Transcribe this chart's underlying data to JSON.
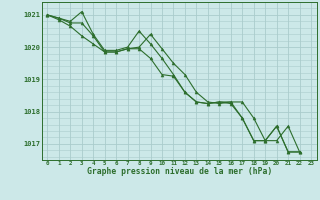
{
  "title": "Graphe pression niveau de la mer (hPa)",
  "background_color": "#cce8e8",
  "grid_color": "#aacccc",
  "line_color": "#2d6e2d",
  "marker_color": "#2d6e2d",
  "ylim": [
    1016.5,
    1021.4
  ],
  "xlim": [
    -0.5,
    23.5
  ],
  "yticks": [
    1017,
    1018,
    1019,
    1020,
    1021
  ],
  "xticks": [
    0,
    1,
    2,
    3,
    4,
    5,
    6,
    7,
    8,
    9,
    10,
    11,
    12,
    13,
    14,
    15,
    16,
    17,
    18,
    19,
    20,
    21,
    22,
    23
  ],
  "series": [
    {
      "x": [
        0,
        1,
        2,
        3,
        4,
        5,
        6,
        7,
        8,
        9,
        10,
        11,
        12,
        13,
        14,
        15,
        16,
        17,
        18,
        19,
        20,
        21,
        22
      ],
      "y": [
        1021.0,
        1020.9,
        1020.8,
        1021.1,
        1020.4,
        1019.9,
        1019.9,
        1020.0,
        1020.5,
        1020.1,
        1019.65,
        1019.15,
        1018.6,
        1018.3,
        1018.25,
        1018.3,
        1018.25,
        1017.8,
        1017.1,
        1017.1,
        1017.55,
        1016.75,
        1016.75
      ]
    },
    {
      "x": [
        0,
        1,
        2,
        3,
        4,
        5,
        6,
        7,
        8,
        9,
        10,
        11,
        12,
        13,
        14,
        15,
        16,
        17,
        18,
        19,
        20,
        21,
        22
      ],
      "y": [
        1021.0,
        1020.9,
        1020.75,
        1020.75,
        1020.35,
        1019.85,
        1019.85,
        1019.95,
        1020.0,
        1020.4,
        1019.95,
        1019.5,
        1019.15,
        1018.6,
        1018.3,
        1018.25,
        1018.3,
        1018.3,
        1017.8,
        1017.1,
        1017.1,
        1017.55,
        1016.75
      ]
    },
    {
      "x": [
        0,
        1,
        2,
        3,
        4,
        5,
        6,
        7,
        8,
        9,
        10,
        11,
        12,
        13,
        14,
        15,
        16,
        17,
        18,
        19,
        20,
        21,
        22
      ],
      "y": [
        1021.0,
        1020.85,
        1020.65,
        1020.35,
        1020.1,
        1019.85,
        1019.85,
        1019.95,
        1019.95,
        1019.65,
        1019.15,
        1019.1,
        1018.6,
        1018.3,
        1018.25,
        1018.3,
        1018.3,
        1017.8,
        1017.1,
        1017.1,
        1017.55,
        1016.75,
        1016.75
      ]
    }
  ]
}
